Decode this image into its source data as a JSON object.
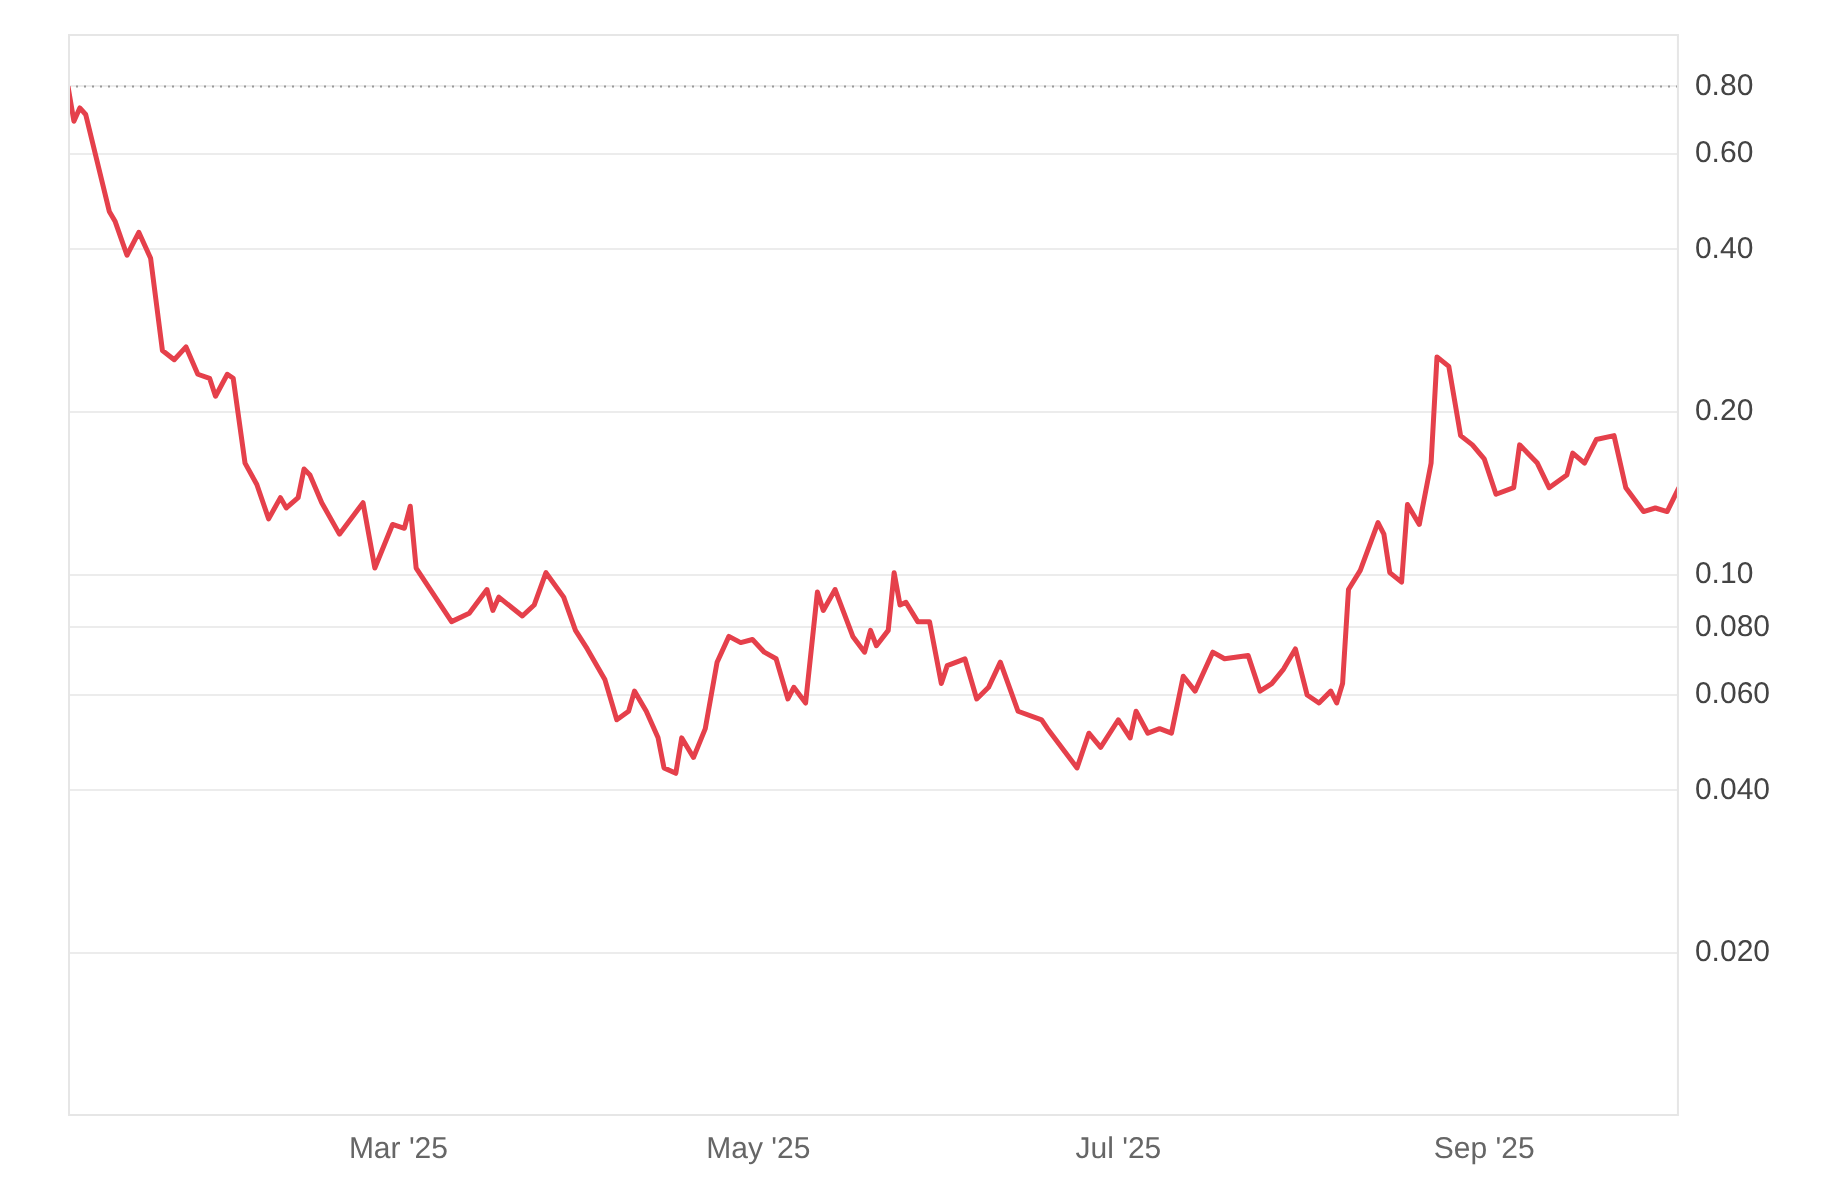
{
  "chart_data": {
    "type": "line",
    "log": "y",
    "grid": "y",
    "legend": false,
    "marker": "none",
    "line_style": "solid",
    "xlim": [
      "2025-01-04",
      "2025-10-04"
    ],
    "xticks": [
      {
        "value": "2025-03-01",
        "label": "Mar '25"
      },
      {
        "value": "2025-05-01",
        "label": "May '25"
      },
      {
        "value": "2025-07-01",
        "label": "Jul '25"
      },
      {
        "value": "2025-09-01",
        "label": "Sep '25"
      }
    ],
    "ylim": [
      0.01,
      1
    ],
    "yticks": [
      {
        "value": 0.02,
        "label": "0.020"
      },
      {
        "value": 0.04,
        "label": "0.040"
      },
      {
        "value": 0.06,
        "label": "0.060"
      },
      {
        "value": 0.08,
        "label": "0.080"
      },
      {
        "value": 0.1,
        "label": "0.10"
      },
      {
        "value": 0.2,
        "label": "0.20"
      },
      {
        "value": 0.4,
        "label": "0.40"
      },
      {
        "value": 0.6,
        "label": "0.60"
      },
      {
        "value": 0.8,
        "label": "0.80"
      }
    ],
    "ref_lines": [
      {
        "axis": "y",
        "value": 0.8,
        "line_style": "dotted",
        "color": "#9a9a9a"
      }
    ],
    "series": [
      {
        "color": "#e5404b",
        "x": [
          "2025-01-04",
          "2025-01-05",
          "2025-01-06",
          "2025-01-07",
          "2025-01-11",
          "2025-01-12",
          "2025-01-14",
          "2025-01-16",
          "2025-01-18",
          "2025-01-20",
          "2025-01-22",
          "2025-01-24",
          "2025-01-26",
          "2025-01-28",
          "2025-01-29",
          "2025-01-31",
          "2025-02-01",
          "2025-02-03",
          "2025-02-05",
          "2025-02-07",
          "2025-02-09",
          "2025-02-10",
          "2025-02-12",
          "2025-02-13",
          "2025-02-14",
          "2025-02-16",
          "2025-02-19",
          "2025-02-23",
          "2025-02-25",
          "2025-02-28",
          "2025-03-02",
          "2025-03-03",
          "2025-03-04",
          "2025-03-10",
          "2025-03-13",
          "2025-03-16",
          "2025-03-17",
          "2025-03-18",
          "2025-03-22",
          "2025-03-24",
          "2025-03-26",
          "2025-03-29",
          "2025-03-31",
          "2025-04-02",
          "2025-04-05",
          "2025-04-07",
          "2025-04-09",
          "2025-04-10",
          "2025-04-12",
          "2025-04-14",
          "2025-04-15",
          "2025-04-17",
          "2025-04-18",
          "2025-04-20",
          "2025-04-22",
          "2025-04-24",
          "2025-04-26",
          "2025-04-28",
          "2025-04-30",
          "2025-05-02",
          "2025-05-04",
          "2025-05-06",
          "2025-05-07",
          "2025-05-09",
          "2025-05-11",
          "2025-05-12",
          "2025-05-14",
          "2025-05-17",
          "2025-05-19",
          "2025-05-20",
          "2025-05-21",
          "2025-05-23",
          "2025-05-24",
          "2025-05-25",
          "2025-05-26",
          "2025-05-28",
          "2025-05-30",
          "2025-06-01",
          "2025-06-02",
          "2025-06-05",
          "2025-06-07",
          "2025-06-09",
          "2025-06-11",
          "2025-06-14",
          "2025-06-18",
          "2025-06-19",
          "2025-06-24",
          "2025-06-26",
          "2025-06-28",
          "2025-07-01",
          "2025-07-03",
          "2025-07-04",
          "2025-07-06",
          "2025-07-08",
          "2025-07-10",
          "2025-07-12",
          "2025-07-14",
          "2025-07-17",
          "2025-07-19",
          "2025-07-23",
          "2025-07-25",
          "2025-07-27",
          "2025-07-29",
          "2025-07-31",
          "2025-08-02",
          "2025-08-04",
          "2025-08-06",
          "2025-08-07",
          "2025-08-08",
          "2025-08-09",
          "2025-08-11",
          "2025-08-14",
          "2025-08-15",
          "2025-08-16",
          "2025-08-18",
          "2025-08-19",
          "2025-08-21",
          "2025-08-23",
          "2025-08-24",
          "2025-08-26",
          "2025-08-28",
          "2025-08-30",
          "2025-09-01",
          "2025-09-03",
          "2025-09-06",
          "2025-09-07",
          "2025-09-10",
          "2025-09-12",
          "2025-09-15",
          "2025-09-16",
          "2025-09-18",
          "2025-09-20",
          "2025-09-23",
          "2025-09-25",
          "2025-09-28",
          "2025-09-30",
          "2025-10-02",
          "2025-10-04"
        ],
        "values": [
          0.8,
          0.69,
          0.73,
          0.71,
          0.47,
          0.45,
          0.39,
          0.43,
          0.385,
          0.26,
          0.25,
          0.264,
          0.235,
          0.231,
          0.214,
          0.235,
          0.231,
          0.161,
          0.147,
          0.127,
          0.139,
          0.133,
          0.139,
          0.157,
          0.153,
          0.136,
          0.119,
          0.136,
          0.103,
          0.124,
          0.122,
          0.134,
          0.103,
          0.082,
          0.085,
          0.094,
          0.086,
          0.091,
          0.084,
          0.088,
          0.101,
          0.091,
          0.079,
          0.073,
          0.064,
          0.054,
          0.056,
          0.061,
          0.056,
          0.05,
          0.044,
          0.043,
          0.05,
          0.046,
          0.052,
          0.069,
          0.077,
          0.075,
          0.076,
          0.072,
          0.07,
          0.059,
          0.062,
          0.058,
          0.093,
          0.086,
          0.094,
          0.077,
          0.072,
          0.079,
          0.074,
          0.079,
          0.101,
          0.088,
          0.089,
          0.082,
          0.082,
          0.063,
          0.068,
          0.07,
          0.059,
          0.062,
          0.069,
          0.056,
          0.054,
          0.052,
          0.044,
          0.051,
          0.048,
          0.054,
          0.05,
          0.056,
          0.051,
          0.052,
          0.051,
          0.065,
          0.061,
          0.072,
          0.07,
          0.071,
          0.061,
          0.063,
          0.067,
          0.073,
          0.06,
          0.058,
          0.061,
          0.058,
          0.063,
          0.094,
          0.102,
          0.125,
          0.119,
          0.101,
          0.097,
          0.135,
          0.124,
          0.161,
          0.253,
          0.243,
          0.181,
          0.174,
          0.164,
          0.141,
          0.145,
          0.174,
          0.161,
          0.145,
          0.153,
          0.168,
          0.161,
          0.178,
          0.181,
          0.145,
          0.131,
          0.133,
          0.131,
          0.145
        ]
      }
    ]
  }
}
